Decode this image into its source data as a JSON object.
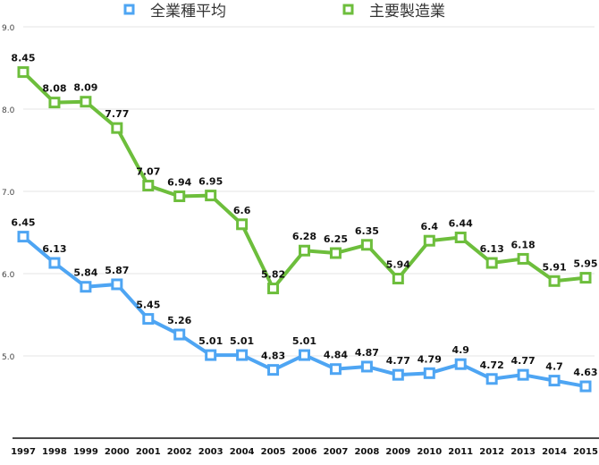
{
  "chart_data": {
    "type": "line",
    "categories": [
      "1997",
      "1998",
      "1999",
      "2000",
      "2001",
      "2002",
      "2003",
      "2004",
      "2005",
      "2006",
      "2007",
      "2008",
      "2009",
      "2010",
      "2011",
      "2012",
      "2013",
      "2014",
      "2015"
    ],
    "series": [
      {
        "name": "全業種平均",
        "color": "#4ea5f3",
        "values": [
          6.45,
          6.13,
          5.84,
          5.87,
          5.45,
          5.26,
          5.01,
          5.01,
          4.83,
          5.01,
          4.84,
          4.87,
          4.77,
          4.79,
          4.9,
          4.72,
          4.77,
          4.7,
          4.63
        ]
      },
      {
        "name": "主要製造業",
        "color": "#6dbe3c",
        "values": [
          8.45,
          8.08,
          8.09,
          7.77,
          7.07,
          6.94,
          6.95,
          6.6,
          5.82,
          6.28,
          6.25,
          6.35,
          5.94,
          6.4,
          6.44,
          6.13,
          6.18,
          5.91,
          5.95
        ]
      }
    ],
    "ylim": [
      4.0,
      9.0
    ],
    "yticks": [
      "5.0",
      "6.0",
      "7.0",
      "8.0",
      "9.0"
    ],
    "grid": true,
    "legend": "top",
    "title": "",
    "xlabel": "",
    "ylabel": ""
  }
}
